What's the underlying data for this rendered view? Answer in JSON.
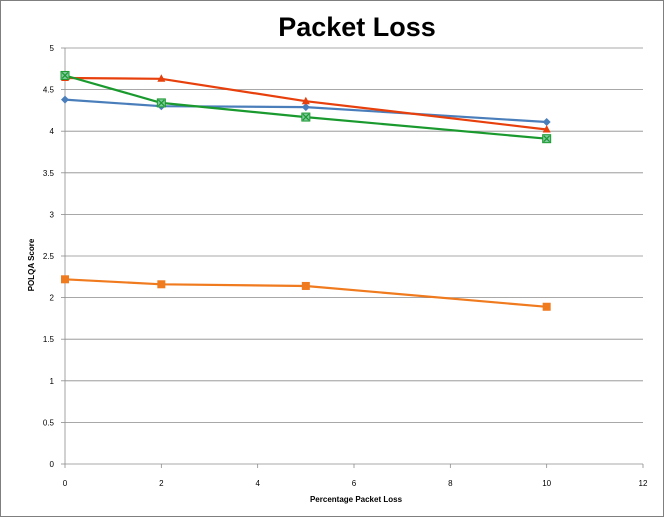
{
  "chart_data": {
    "type": "line",
    "title": "Packet Loss",
    "xlabel": "Percentage Packet Loss",
    "ylabel": "POLQA Score",
    "xlim": [
      0,
      12
    ],
    "ylim": [
      0,
      5
    ],
    "xticks": [
      0,
      2,
      4,
      6,
      8,
      10,
      12
    ],
    "yticks": [
      0,
      0.5,
      1,
      1.5,
      2,
      2.5,
      3,
      3.5,
      4,
      4.5,
      5
    ],
    "grid": true,
    "legend": "none",
    "series": [
      {
        "color": "#4a7ebb",
        "marker": "diamond",
        "x": [
          0,
          2,
          5,
          10
        ],
        "y": [
          4.38,
          4.3,
          4.29,
          4.11
        ]
      },
      {
        "color": "#e8400c",
        "marker": "triangle",
        "x": [
          0,
          2,
          5,
          10
        ],
        "y": [
          4.64,
          4.63,
          4.36,
          4.02
        ]
      },
      {
        "color": "#1a9a2e",
        "marker": "x-square",
        "x": [
          0,
          2,
          5,
          10
        ],
        "y": [
          4.67,
          4.34,
          4.17,
          3.91
        ]
      },
      {
        "color": "#f07a1e",
        "marker": "square",
        "x": [
          0,
          2,
          5,
          10
        ],
        "y": [
          2.22,
          2.16,
          2.14,
          1.89
        ]
      }
    ]
  }
}
